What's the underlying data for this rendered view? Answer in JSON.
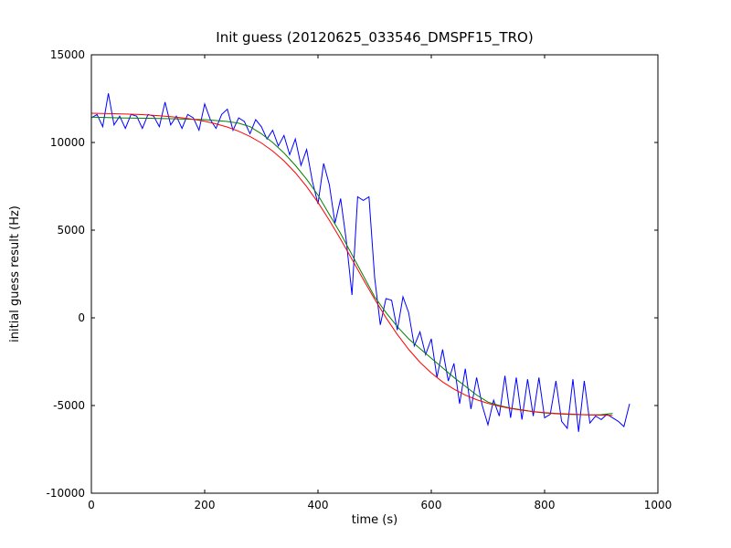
{
  "figure": {
    "background": "#ffffff",
    "frame_color": "#000000"
  },
  "chart_data": {
    "type": "line",
    "title": "Init guess (20120625_033546_DMSPF15_TRO)",
    "xlabel": "time (s)",
    "ylabel": "initial guess result (Hz)",
    "xlim": [
      0,
      1000
    ],
    "ylim": [
      -10000,
      15000
    ],
    "xticks": [
      0,
      200,
      400,
      600,
      800,
      1000
    ],
    "xtick_labels": [
      "0",
      "200",
      "400",
      "600",
      "800",
      "1000"
    ],
    "yticks": [
      -10000,
      -5000,
      0,
      5000,
      10000,
      15000
    ],
    "ytick_labels": [
      "-10000",
      "-5000",
      "0",
      "5000",
      "10000",
      "15000"
    ],
    "grid": false,
    "legend": "none",
    "series": [
      {
        "name": "blue-line",
        "color": "#0000ff",
        "points": [
          [
            0,
            11400
          ],
          [
            10,
            11600
          ],
          [
            20,
            10900
          ],
          [
            30,
            12800
          ],
          [
            40,
            11000
          ],
          [
            50,
            11500
          ],
          [
            60,
            10800
          ],
          [
            70,
            11600
          ],
          [
            80,
            11500
          ],
          [
            90,
            10800
          ],
          [
            100,
            11600
          ],
          [
            110,
            11500
          ],
          [
            120,
            10900
          ],
          [
            130,
            12300
          ],
          [
            140,
            11000
          ],
          [
            150,
            11500
          ],
          [
            160,
            10800
          ],
          [
            170,
            11600
          ],
          [
            180,
            11400
          ],
          [
            190,
            10700
          ],
          [
            200,
            12200
          ],
          [
            210,
            11300
          ],
          [
            220,
            10800
          ],
          [
            230,
            11600
          ],
          [
            240,
            11900
          ],
          [
            250,
            10700
          ],
          [
            260,
            11400
          ],
          [
            270,
            11200
          ],
          [
            280,
            10500
          ],
          [
            290,
            11300
          ],
          [
            300,
            10900
          ],
          [
            310,
            10200
          ],
          [
            320,
            10700
          ],
          [
            330,
            9800
          ],
          [
            340,
            10400
          ],
          [
            350,
            9300
          ],
          [
            360,
            10200
          ],
          [
            370,
            8700
          ],
          [
            380,
            9600
          ],
          [
            390,
            7800
          ],
          [
            400,
            6500
          ],
          [
            410,
            8800
          ],
          [
            420,
            7600
          ],
          [
            430,
            5400
          ],
          [
            440,
            6800
          ],
          [
            450,
            4400
          ],
          [
            460,
            1300
          ],
          [
            470,
            6900
          ],
          [
            480,
            6700
          ],
          [
            490,
            6900
          ],
          [
            500,
            2300
          ],
          [
            510,
            -400
          ],
          [
            520,
            1100
          ],
          [
            530,
            1000
          ],
          [
            540,
            -700
          ],
          [
            550,
            1200
          ],
          [
            560,
            300
          ],
          [
            570,
            -1600
          ],
          [
            580,
            -800
          ],
          [
            590,
            -2100
          ],
          [
            600,
            -1200
          ],
          [
            610,
            -3400
          ],
          [
            620,
            -1800
          ],
          [
            630,
            -3600
          ],
          [
            640,
            -2600
          ],
          [
            650,
            -4900
          ],
          [
            660,
            -2900
          ],
          [
            670,
            -5200
          ],
          [
            680,
            -3400
          ],
          [
            690,
            -5000
          ],
          [
            700,
            -6100
          ],
          [
            710,
            -4700
          ],
          [
            720,
            -5600
          ],
          [
            730,
            -3300
          ],
          [
            740,
            -5700
          ],
          [
            750,
            -3400
          ],
          [
            760,
            -5800
          ],
          [
            770,
            -3500
          ],
          [
            780,
            -5600
          ],
          [
            790,
            -3400
          ],
          [
            800,
            -5700
          ],
          [
            810,
            -5500
          ],
          [
            820,
            -3600
          ],
          [
            830,
            -5900
          ],
          [
            840,
            -6300
          ],
          [
            850,
            -3500
          ],
          [
            860,
            -6500
          ],
          [
            870,
            -3600
          ],
          [
            880,
            -6000
          ],
          [
            890,
            -5600
          ],
          [
            900,
            -5800
          ],
          [
            910,
            -5500
          ],
          [
            920,
            -5700
          ],
          [
            930,
            -5900
          ],
          [
            940,
            -6200
          ],
          [
            950,
            -4900
          ]
        ]
      },
      {
        "name": "green-line",
        "color": "#008000",
        "points": [
          [
            0,
            11450
          ],
          [
            50,
            11400
          ],
          [
            100,
            11380
          ],
          [
            150,
            11350
          ],
          [
            200,
            11300
          ],
          [
            220,
            11250
          ],
          [
            240,
            11200
          ],
          [
            260,
            11100
          ],
          [
            280,
            10900
          ],
          [
            300,
            10500
          ],
          [
            320,
            10000
          ],
          [
            340,
            9400
          ],
          [
            360,
            8700
          ],
          [
            380,
            7900
          ],
          [
            400,
            7000
          ],
          [
            420,
            5900
          ],
          [
            440,
            4800
          ],
          [
            460,
            3600
          ],
          [
            480,
            2400
          ],
          [
            500,
            1200
          ],
          [
            520,
            300
          ],
          [
            540,
            -500
          ],
          [
            560,
            -1200
          ],
          [
            580,
            -1750
          ],
          [
            600,
            -2300
          ],
          [
            620,
            -2850
          ],
          [
            640,
            -3400
          ],
          [
            660,
            -3900
          ],
          [
            680,
            -4400
          ],
          [
            700,
            -4800
          ],
          [
            720,
            -5000
          ],
          [
            740,
            -5150
          ],
          [
            760,
            -5250
          ],
          [
            780,
            -5350
          ],
          [
            800,
            -5420
          ],
          [
            820,
            -5470
          ],
          [
            840,
            -5500
          ],
          [
            860,
            -5520
          ],
          [
            880,
            -5530
          ],
          [
            900,
            -5520
          ],
          [
            920,
            -5450
          ]
        ]
      },
      {
        "name": "red-line",
        "color": "#ff0000",
        "points": [
          [
            0,
            11665
          ],
          [
            20,
            11654
          ],
          [
            40,
            11640
          ],
          [
            60,
            11622
          ],
          [
            80,
            11599
          ],
          [
            100,
            11568
          ],
          [
            120,
            11528
          ],
          [
            140,
            11476
          ],
          [
            160,
            11408
          ],
          [
            180,
            11321
          ],
          [
            200,
            11209
          ],
          [
            220,
            11065
          ],
          [
            240,
            10879
          ],
          [
            260,
            10642
          ],
          [
            280,
            10346
          ],
          [
            300,
            9974
          ],
          [
            320,
            9512
          ],
          [
            340,
            8952
          ],
          [
            360,
            8278
          ],
          [
            380,
            7486
          ],
          [
            400,
            6580
          ],
          [
            420,
            5570
          ],
          [
            440,
            4479
          ],
          [
            460,
            3338
          ],
          [
            480,
            2188
          ],
          [
            500,
            1067
          ],
          [
            520,
            13
          ],
          [
            540,
            -947
          ],
          [
            560,
            -1797
          ],
          [
            580,
            -2529
          ],
          [
            600,
            -3146
          ],
          [
            620,
            -3656
          ],
          [
            640,
            -4070
          ],
          [
            660,
            -4404
          ],
          [
            680,
            -4669
          ],
          [
            700,
            -4877
          ],
          [
            720,
            -5041
          ],
          [
            740,
            -5169
          ],
          [
            760,
            -5268
          ],
          [
            780,
            -5344
          ],
          [
            800,
            -5404
          ],
          [
            820,
            -5449
          ],
          [
            840,
            -5484
          ],
          [
            860,
            -5511
          ],
          [
            880,
            -5532
          ],
          [
            900,
            -5548
          ],
          [
            920,
            -5560
          ]
        ]
      }
    ]
  }
}
